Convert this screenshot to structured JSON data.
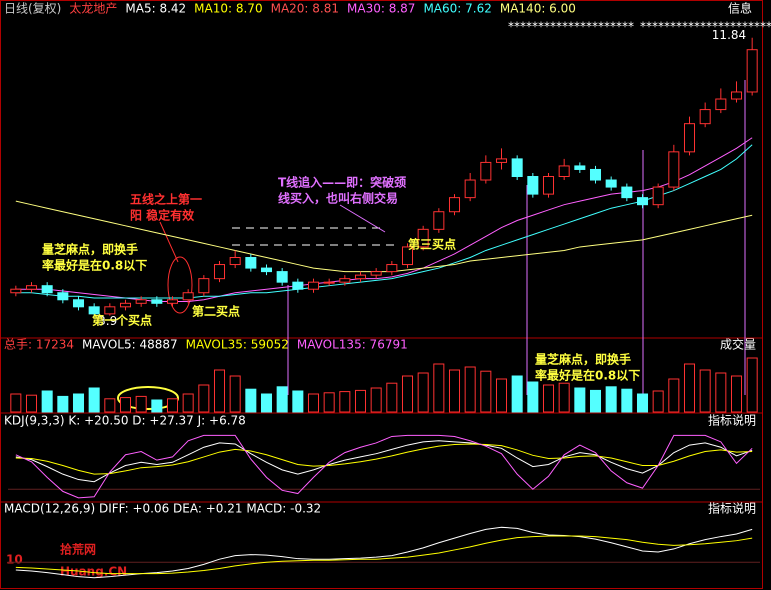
{
  "chart_data": [
    {
      "type": "candlestick",
      "header": [
        {
          "text": "日线(复权)",
          "color": "#c8c8c8"
        },
        {
          "text": "太龙地产",
          "color": "#ff4040"
        },
        {
          "text": "MA5: 8.42",
          "color": "#ffffff"
        },
        {
          "text": "MA10: 8.70",
          "color": "#ffff00"
        },
        {
          "text": "MA20: 8.81",
          "color": "#ff5050"
        },
        {
          "text": "MA30: 8.87",
          "color": "#ff60ff"
        },
        {
          "text": "MA60: 7.62",
          "color": "#40ffff"
        },
        {
          "text": "MA140: 6.00",
          "color": "#ffff80"
        }
      ],
      "ylim": [
        3.4,
        12.4
      ],
      "open": [
        4.6,
        4.7,
        4.8,
        4.6,
        4.4,
        4.2,
        4.0,
        4.2,
        4.3,
        4.4,
        4.3,
        4.4,
        4.6,
        5.0,
        5.4,
        5.6,
        5.3,
        5.2,
        4.9,
        4.7,
        4.9,
        4.9,
        5.0,
        5.1,
        5.2,
        5.4,
        5.9,
        6.4,
        6.9,
        7.3,
        7.8,
        8.3,
        8.4,
        7.9,
        7.4,
        7.9,
        8.2,
        8.1,
        7.8,
        7.6,
        7.3,
        7.1,
        7.6,
        8.6,
        9.4,
        9.8,
        10.1,
        10.3
      ],
      "close": [
        4.7,
        4.8,
        4.6,
        4.4,
        4.2,
        4.0,
        4.2,
        4.3,
        4.4,
        4.3,
        4.4,
        4.6,
        5.0,
        5.4,
        5.6,
        5.3,
        5.2,
        4.9,
        4.7,
        4.9,
        4.9,
        5.0,
        5.1,
        5.2,
        5.4,
        5.9,
        6.4,
        6.9,
        7.3,
        7.8,
        8.3,
        8.4,
        7.9,
        7.4,
        7.9,
        8.2,
        8.1,
        7.8,
        7.6,
        7.3,
        7.1,
        7.6,
        8.6,
        9.4,
        9.8,
        10.1,
        10.3,
        11.5
      ],
      "high": [
        4.8,
        4.9,
        4.9,
        4.7,
        4.5,
        4.3,
        4.3,
        4.4,
        4.5,
        4.5,
        4.5,
        4.7,
        5.1,
        5.5,
        5.8,
        5.7,
        5.4,
        5.3,
        5.0,
        5.0,
        5.0,
        5.1,
        5.2,
        5.3,
        5.5,
        6.0,
        6.5,
        7.0,
        7.4,
        8.0,
        8.5,
        8.7,
        8.5,
        8.0,
        8.0,
        8.4,
        8.3,
        8.2,
        7.9,
        7.7,
        7.4,
        7.7,
        8.8,
        9.6,
        10.0,
        10.4,
        10.6,
        11.84
      ],
      "low": [
        4.5,
        4.6,
        4.5,
        4.3,
        4.1,
        3.9,
        3.95,
        4.1,
        4.2,
        4.2,
        4.2,
        4.3,
        4.5,
        4.9,
        5.3,
        5.2,
        5.1,
        4.8,
        4.6,
        4.6,
        4.8,
        4.8,
        4.9,
        5.0,
        5.1,
        5.3,
        5.8,
        6.3,
        6.8,
        7.2,
        7.7,
        8.1,
        7.8,
        7.3,
        7.3,
        7.8,
        8.0,
        7.7,
        7.5,
        7.2,
        7.0,
        7.0,
        7.5,
        8.5,
        9.3,
        9.7,
        10.0,
        10.2
      ],
      "series": [
        {
          "name": "MA20",
          "color": "#ff60ff",
          "values": [
            4.7,
            4.7,
            4.7,
            4.65,
            4.6,
            4.55,
            4.5,
            4.45,
            4.4,
            4.35,
            4.35,
            4.35,
            4.4,
            4.5,
            4.6,
            4.65,
            4.7,
            4.75,
            4.8,
            4.85,
            4.9,
            4.95,
            5.0,
            5.0,
            5.05,
            5.15,
            5.3,
            5.5,
            5.7,
            5.95,
            6.2,
            6.45,
            6.65,
            6.8,
            6.95,
            7.1,
            7.2,
            7.3,
            7.4,
            7.45,
            7.5,
            7.6,
            7.75,
            7.95,
            8.2,
            8.45,
            8.7,
            9.0
          ]
        },
        {
          "name": "MA60",
          "color": "#40ffff",
          "values": [
            4.6,
            4.6,
            4.55,
            4.5,
            4.5,
            4.45,
            4.45,
            4.45,
            4.45,
            4.45,
            4.45,
            4.45,
            4.5,
            4.5,
            4.55,
            4.6,
            4.6,
            4.65,
            4.7,
            4.75,
            4.8,
            4.85,
            4.9,
            4.95,
            5.0,
            5.1,
            5.2,
            5.3,
            5.45,
            5.6,
            5.8,
            5.95,
            6.1,
            6.25,
            6.4,
            6.55,
            6.7,
            6.85,
            7.0,
            7.1,
            7.2,
            7.35,
            7.5,
            7.7,
            7.9,
            8.1,
            8.4,
            8.8
          ]
        },
        {
          "name": "MA140",
          "color": "#ffff80",
          "values": [
            7.2,
            7.1,
            7.0,
            6.9,
            6.8,
            6.7,
            6.6,
            6.5,
            6.4,
            6.3,
            6.2,
            6.1,
            6.0,
            5.9,
            5.8,
            5.7,
            5.6,
            5.5,
            5.4,
            5.3,
            5.25,
            5.2,
            5.2,
            5.2,
            5.2,
            5.25,
            5.3,
            5.35,
            5.4,
            5.5,
            5.55,
            5.6,
            5.65,
            5.7,
            5.75,
            5.8,
            5.9,
            5.95,
            6.0,
            6.05,
            6.1,
            6.2,
            6.3,
            6.4,
            6.5,
            6.6,
            6.7,
            6.8
          ]
        }
      ]
    },
    {
      "type": "volume",
      "header": [
        {
          "text": "总手: 17234",
          "color": "#ff4040"
        },
        {
          "text": "MAVOL5: 48887",
          "color": "#ffffff"
        },
        {
          "text": "MAVOL35: 59052",
          "color": "#ffff00"
        },
        {
          "text": "MAVOL135: 76791",
          "color": "#ff60ff"
        }
      ],
      "button": "成交量",
      "ylim": [
        0,
        100000
      ],
      "values": [
        30000,
        28000,
        35000,
        26000,
        30000,
        40000,
        22000,
        24000,
        26000,
        20000,
        22000,
        30000,
        45000,
        70000,
        60000,
        38000,
        30000,
        42000,
        35000,
        30000,
        32000,
        34000,
        36000,
        40000,
        48000,
        60000,
        65000,
        80000,
        70000,
        75000,
        68000,
        55000,
        60000,
        50000,
        45000,
        48000,
        40000,
        36000,
        42000,
        38000,
        30000,
        35000,
        55000,
        80000,
        70000,
        65000,
        60000,
        90000
      ]
    },
    {
      "type": "line",
      "header": [
        {
          "text": "KDJ(9,3,3) K: +20.50 D: +27.37 J: +6.78",
          "color": "#ffffff"
        }
      ],
      "button": "指标说明",
      "ylim": [
        -20,
        110
      ],
      "series": [
        {
          "name": "K",
          "color": "#ffffff",
          "values": [
            60,
            55,
            42,
            28,
            18,
            14,
            30,
            44,
            50,
            46,
            50,
            64,
            78,
            86,
            84,
            66,
            50,
            36,
            28,
            36,
            46,
            54,
            60,
            66,
            74,
            82,
            88,
            90,
            88,
            86,
            82,
            76,
            58,
            42,
            46,
            60,
            68,
            64,
            50,
            38,
            30,
            44,
            68,
            82,
            86,
            78,
            62,
            72
          ]
        },
        {
          "name": "D",
          "color": "#ffff00",
          "values": [
            58,
            57,
            52,
            44,
            35,
            28,
            29,
            34,
            40,
            42,
            45,
            51,
            60,
            69,
            74,
            71,
            64,
            55,
            46,
            43,
            44,
            47,
            51,
            56,
            62,
            69,
            75,
            80,
            83,
            84,
            83,
            81,
            73,
            63,
            57,
            58,
            61,
            62,
            58,
            51,
            44,
            44,
            52,
            62,
            70,
            73,
            69,
            70
          ]
        },
        {
          "name": "J",
          "color": "#ff60ff",
          "values": [
            64,
            51,
            22,
            -4,
            -16,
            -14,
            32,
            64,
            70,
            54,
            60,
            90,
            100,
            100,
            100,
            56,
            22,
            -2,
            -8,
            22,
            50,
            68,
            78,
            86,
            98,
            100,
            100,
            100,
            98,
            90,
            80,
            66,
            28,
            0,
            24,
            64,
            82,
            68,
            34,
            12,
            2,
            44,
            100,
            100,
            100,
            88,
            48,
            76
          ]
        }
      ]
    },
    {
      "type": "line",
      "header": [
        {
          "text": "MACD(12,26,9) DIFF: +0.06 DEA: +0.21 MACD: -0.32",
          "color": "#ffffff"
        }
      ],
      "button": "指标说明",
      "ylim": [
        -0.5,
        0.9
      ],
      "series": [
        {
          "name": "DIFF",
          "color": "#ffffff",
          "values": [
            -0.15,
            -0.17,
            -0.2,
            -0.24,
            -0.28,
            -0.3,
            -0.28,
            -0.25,
            -0.22,
            -0.2,
            -0.17,
            -0.12,
            -0.04,
            0.06,
            0.13,
            0.15,
            0.14,
            0.11,
            0.07,
            0.06,
            0.06,
            0.07,
            0.08,
            0.1,
            0.13,
            0.2,
            0.28,
            0.38,
            0.47,
            0.56,
            0.64,
            0.68,
            0.66,
            0.58,
            0.53,
            0.52,
            0.5,
            0.45,
            0.38,
            0.3,
            0.22,
            0.2,
            0.26,
            0.36,
            0.44,
            0.5,
            0.55,
            0.64
          ]
        },
        {
          "name": "DEA",
          "color": "#ffff00",
          "values": [
            -0.1,
            -0.11,
            -0.13,
            -0.15,
            -0.17,
            -0.2,
            -0.22,
            -0.22,
            -0.22,
            -0.22,
            -0.21,
            -0.19,
            -0.16,
            -0.12,
            -0.07,
            -0.03,
            0,
            0.02,
            0.03,
            0.04,
            0.04,
            0.05,
            0.06,
            0.06,
            0.08,
            0.1,
            0.14,
            0.18,
            0.24,
            0.3,
            0.37,
            0.43,
            0.48,
            0.5,
            0.51,
            0.51,
            0.51,
            0.5,
            0.47,
            0.44,
            0.39,
            0.35,
            0.33,
            0.34,
            0.36,
            0.39,
            0.42,
            0.47
          ]
        }
      ]
    }
  ],
  "info_button": "信息",
  "markers": [
    "*********************",
    "**********************"
  ],
  "annotations": [
    {
      "color": "#ff3030",
      "lines": [
        "五线之上第一",
        "阳 稳定有效"
      ]
    },
    {
      "color": "#e070ff",
      "lines": [
        "T线追入——即：突破颈",
        "线买入，也叫右侧交易"
      ]
    },
    {
      "color": "#ffff40",
      "lines": [
        "量芝麻点，即换手",
        "率最好是在0.8以下"
      ]
    },
    {
      "color": "#ffff40",
      "lines": [
        "第一个买点"
      ]
    },
    {
      "color": "#ffff40",
      "lines": [
        "第二买点"
      ]
    },
    {
      "color": "#ffff40",
      "lines": [
        "第三买点"
      ]
    },
    {
      "color": "#ffff40",
      "lines": [
        "量芝麻点，即换手",
        "率最好是在0.8以下"
      ]
    }
  ],
  "watermark": {
    "logo": "10",
    "name": "拾荒网",
    "site": "Huang.CN"
  }
}
